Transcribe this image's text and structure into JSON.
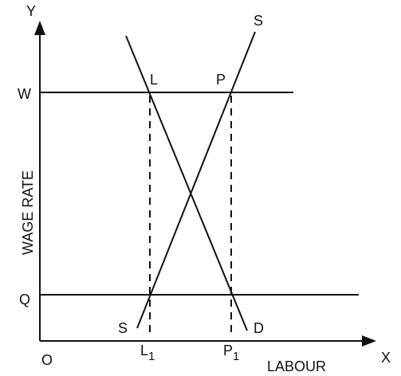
{
  "axes": {
    "y": "Y",
    "x": "X",
    "origin": "O",
    "y_label": "WAGE RATE",
    "x_label": "LABOUR"
  },
  "levels": {
    "w": "W",
    "q": "Q"
  },
  "curves": {
    "supply_top": "S",
    "supply_bottom": "S",
    "demand": "D"
  },
  "points": {
    "l": "L",
    "p": "P"
  },
  "x_points": [
    {
      "letter": "L",
      "sub": "1"
    },
    {
      "letter": "P",
      "sub": "1"
    }
  ]
}
